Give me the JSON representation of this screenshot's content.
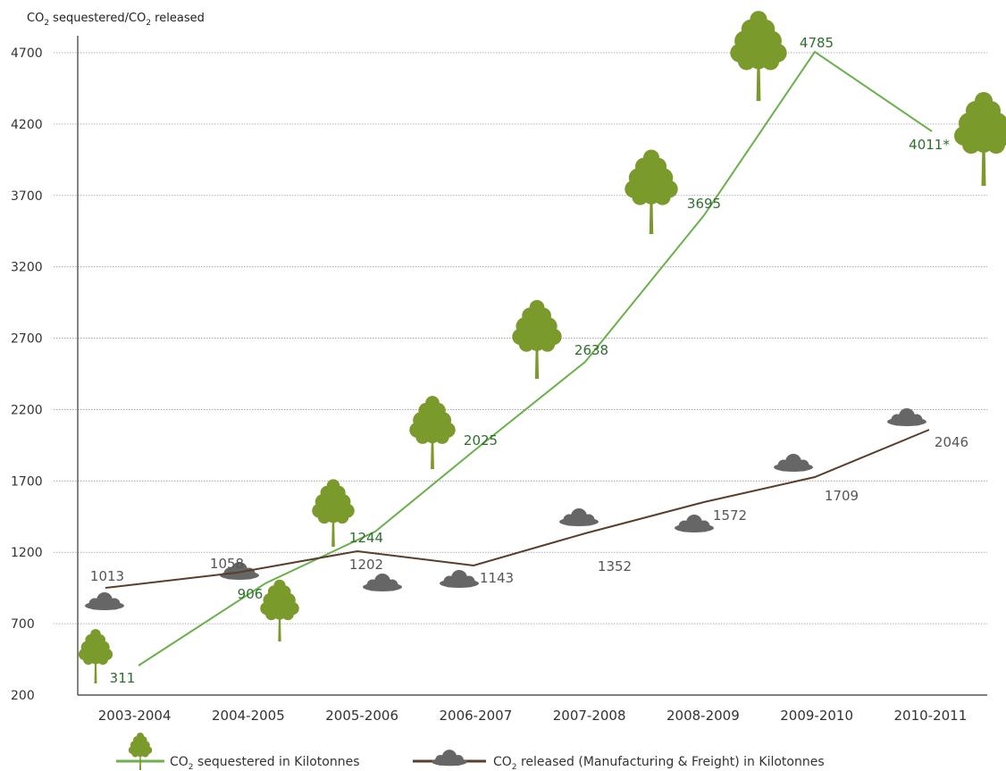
{
  "chart_data": {
    "type": "line",
    "ylabel_parts": [
      "CO",
      "2",
      " sequestered/CO",
      "2",
      " released"
    ],
    "ylim": [
      200,
      4700
    ],
    "yticks": [
      200,
      700,
      1200,
      1700,
      2200,
      2700,
      3200,
      3700,
      4200,
      4700
    ],
    "grid": true,
    "categories": [
      "2003-2004",
      "2004-2005",
      "2005-2006",
      "2006-2007",
      "2007-2008",
      "2008-2009",
      "2009-2010",
      "2010-2011"
    ],
    "series": [
      {
        "key": "sequestered",
        "values": [
          311,
          906,
          1244,
          2025,
          2638,
          3695,
          4785,
          4011
        ],
        "data_labels": [
          "311",
          "906",
          "1244",
          "2025",
          "2638",
          "3695",
          "4785",
          "4011*"
        ],
        "color": "#6ab04c",
        "label_color": "#2e6e2e",
        "marker": "tree-icon",
        "legend_parts": [
          "CO",
          "2",
          " sequestered in Kilotonnes"
        ]
      },
      {
        "key": "released",
        "values": [
          1013,
          1058,
          1202,
          1143,
          1352,
          1572,
          1709,
          2046
        ],
        "data_labels": [
          "1013",
          "1058",
          "1202",
          "1143",
          "1352",
          "1572",
          "1709",
          "2046"
        ],
        "color": "#5a3e2b",
        "label_color": "#555555",
        "marker": "cloud-icon",
        "legend_parts": [
          "CO",
          "2",
          " released (Manufacturing & Freight) in Kilotonnes"
        ]
      }
    ],
    "tree_color": "#7a9a2c",
    "cloud_color": "#666666"
  }
}
